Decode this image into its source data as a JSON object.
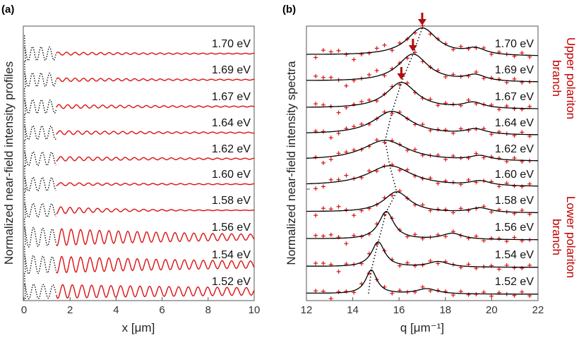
{
  "chart_data": [
    {
      "panel": "(a)",
      "type": "line",
      "ylabel": "Normalized near-field intensity profiles",
      "xlabel": "x [μm]",
      "xlim": [
        0,
        10
      ],
      "xticks": [
        0,
        2,
        4,
        6,
        8,
        10
      ],
      "series": [
        {
          "name": "1.70 eV",
          "period_um": 0.37,
          "amplitude": 0.15,
          "decay_um": 6
        },
        {
          "name": "1.69 eV",
          "period_um": 0.37,
          "amplitude": 0.18,
          "decay_um": 6
        },
        {
          "name": "1.67 eV",
          "period_um": 0.38,
          "amplitude": 0.2,
          "decay_um": 6
        },
        {
          "name": "1.64 eV",
          "period_um": 0.39,
          "amplitude": 0.2,
          "decay_um": 6
        },
        {
          "name": "1.62 eV",
          "period_um": 0.4,
          "amplitude": 0.22,
          "decay_um": 6
        },
        {
          "name": "1.60 eV",
          "period_um": 0.4,
          "amplitude": 0.15,
          "decay_um": 6
        },
        {
          "name": "1.58 eV",
          "period_um": 0.4,
          "amplitude": 0.45,
          "decay_um": 3
        },
        {
          "name": "1.56 eV",
          "period_um": 0.41,
          "amplitude": 0.8,
          "decay_um": 8
        },
        {
          "name": "1.54 eV",
          "period_um": 0.41,
          "amplitude": 0.75,
          "decay_um": 10
        },
        {
          "name": "1.52 eV",
          "period_um": 0.42,
          "amplitude": 0.6,
          "decay_um": 14
        }
      ],
      "notes": "Black dotted segment for x < 1.4 μm, red solid beyond"
    },
    {
      "panel": "(b)",
      "type": "line",
      "ylabel": "Normalized near-field intensity spectra",
      "xlabel": "q [μm⁻¹]",
      "xlim": [
        12,
        22
      ],
      "xticks": [
        12,
        14,
        16,
        18,
        20,
        22
      ],
      "series": [
        {
          "name": "1.70 eV",
          "peak_q": 17.0,
          "width": 0.8,
          "has_arrow": true
        },
        {
          "name": "1.69 eV",
          "peak_q": 16.6,
          "width": 0.8,
          "has_arrow": true
        },
        {
          "name": "1.67 eV",
          "peak_q": 16.1,
          "width": 0.8,
          "has_arrow": true
        },
        {
          "name": "1.64 eV",
          "peak_q": 15.7,
          "width": 1.0,
          "has_arrow": false
        },
        {
          "name": "1.62 eV",
          "peak_q": 15.4,
          "width": 1.2,
          "has_arrow": false
        },
        {
          "name": "1.60 eV",
          "peak_q": 15.6,
          "width": 1.2,
          "has_arrow": false
        },
        {
          "name": "1.58 eV",
          "peak_q": 15.9,
          "width": 0.7,
          "has_arrow": false
        },
        {
          "name": "1.56 eV",
          "peak_q": 15.45,
          "width": 0.4,
          "has_arrow": false
        },
        {
          "name": "1.54 eV",
          "peak_q": 15.1,
          "width": 0.35,
          "has_arrow": false
        },
        {
          "name": "1.52 eV",
          "peak_q": 14.8,
          "width": 0.3,
          "has_arrow": false
        }
      ],
      "secondary_peaks_q": [
        19.3,
        19.3,
        19.2,
        19.3,
        19.5,
        19.5,
        19.5,
        18.3,
        17.7,
        17.2
      ],
      "branch_labels": [
        "Upper polariton branch",
        "Lower polariton branch"
      ],
      "notes": "Black solid = fit, red + = data, dotted black connects peaks, red arrows mark upper-branch peaks"
    }
  ],
  "figure": {
    "panel_a_label": "(a)",
    "panel_b_label": "(b)",
    "colors": {
      "data": "#dd1111",
      "fit": "#000000",
      "branch": "#c00000",
      "arrow": "#b01010"
    }
  }
}
